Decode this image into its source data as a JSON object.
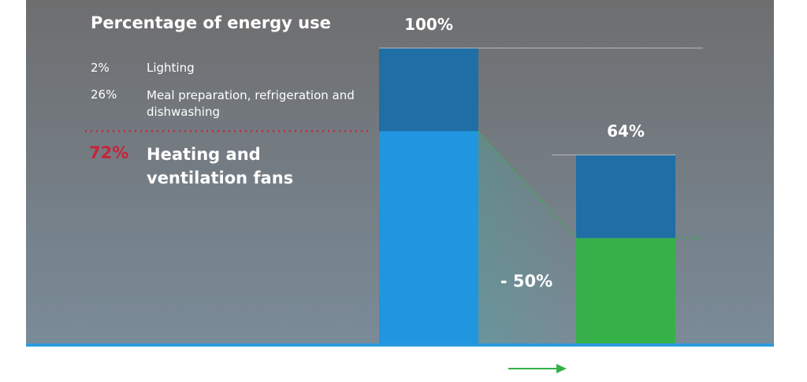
{
  "chart_data": {
    "type": "stacked-bar",
    "title": "Percentage of energy use",
    "categories": [
      null,
      null
    ],
    "series": [
      {
        "values": [
          72,
          36
        ],
        "colors": [
          "#2196e0",
          "#36b14a"
        ]
      },
      {
        "values": [
          28,
          28
        ],
        "color": "#1f6ea6"
      }
    ],
    "totals": [
      100,
      64
    ],
    "total_labels": [
      "100%",
      "64%"
    ],
    "ylim": [
      0,
      100
    ],
    "legend": [
      {
        "label": "2%",
        "text": "Lighting"
      },
      {
        "label": "26%",
        "text": "Meal preparation, refrigeration and dishwashing"
      },
      {
        "label": "72%",
        "text": "Heating and ventilation fans"
      }
    ],
    "reduction": {
      "value": -50,
      "label": "- 50%"
    }
  }
}
